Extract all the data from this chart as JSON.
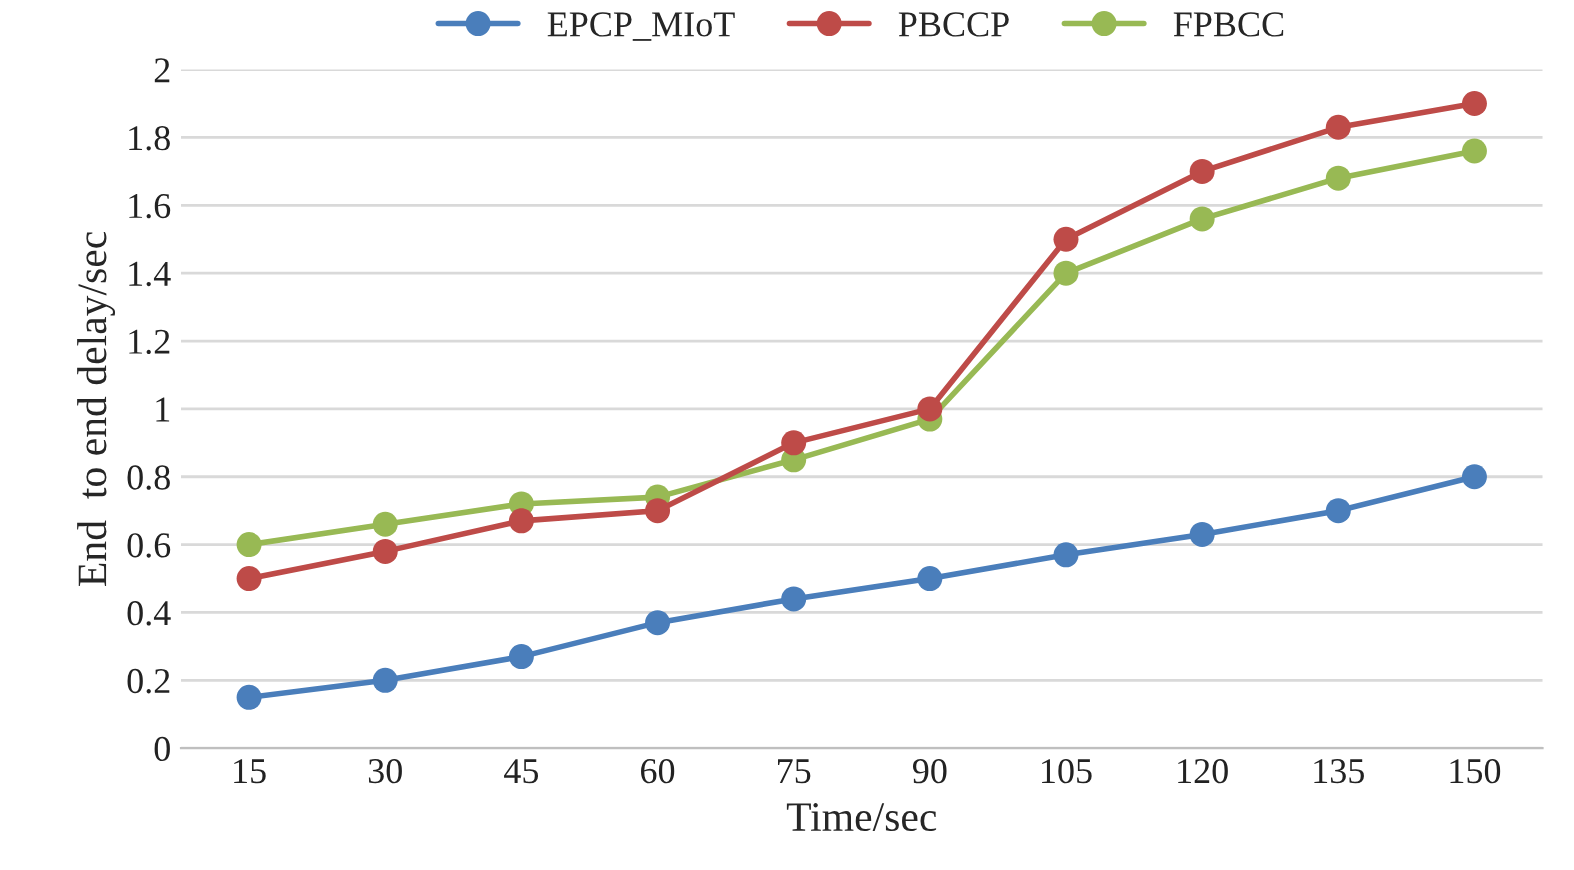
{
  "chart_data": {
    "type": "line",
    "xlabel": "Time/sec",
    "ylabel": "End  to end delay/sec",
    "categories": [
      "15",
      "30",
      "45",
      "60",
      "75",
      "90",
      "105",
      "120",
      "135",
      "150"
    ],
    "series": [
      {
        "name": "EPCP_MIoT",
        "color": "#4a7ebb",
        "values": [
          0.15,
          0.2,
          0.27,
          0.37,
          0.44,
          0.5,
          0.57,
          0.63,
          0.7,
          0.8
        ]
      },
      {
        "name": "PBCCP",
        "color": "#be4b48",
        "values": [
          0.5,
          0.58,
          0.67,
          0.7,
          0.9,
          1.0,
          1.5,
          1.7,
          1.83,
          1.9
        ]
      },
      {
        "name": "FPBCC",
        "color": "#98b954",
        "values": [
          0.6,
          0.66,
          0.72,
          0.74,
          0.85,
          0.97,
          1.4,
          1.56,
          1.68,
          1.76
        ]
      }
    ],
    "ylim": [
      0,
      2
    ],
    "yticks": [
      0,
      0.2,
      0.4,
      0.6,
      0.8,
      1,
      1.2,
      1.4,
      1.6,
      1.8,
      2
    ],
    "grid": "y",
    "legend": "top",
    "marker": "circle",
    "line_style": "solid"
  }
}
